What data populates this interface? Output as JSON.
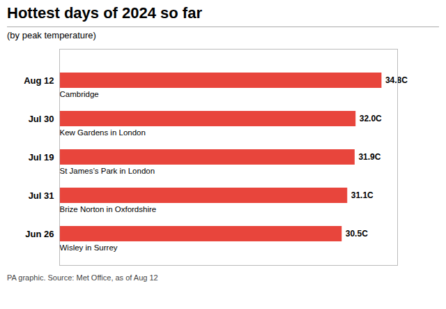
{
  "chart_data": {
    "type": "bar",
    "orientation": "horizontal",
    "title": "Hottest days of 2024 so far",
    "subtitle": "(by peak temperature)",
    "caption": "PA graphic. Source: Met Office, as of Aug 12",
    "categories": [
      "Aug 12",
      "Jul 30",
      "Jul 19",
      "Jul 31",
      "Jun 26"
    ],
    "locations": [
      "Cambridge",
      "Kew Gardens in London",
      "St James’s Park in London",
      "Brize Norton in Oxfordshire",
      "Wisley in Surrey"
    ],
    "values": [
      34.8,
      32.0,
      31.9,
      31.1,
      30.5
    ],
    "value_labels": [
      "34.8C",
      "32.0C",
      "31.9C",
      "31.1C",
      "30.5C"
    ],
    "data_labels": true,
    "color": "#e8453c",
    "xlim": [
      0,
      36.5
    ],
    "tick_labels": "y",
    "grid": false
  }
}
